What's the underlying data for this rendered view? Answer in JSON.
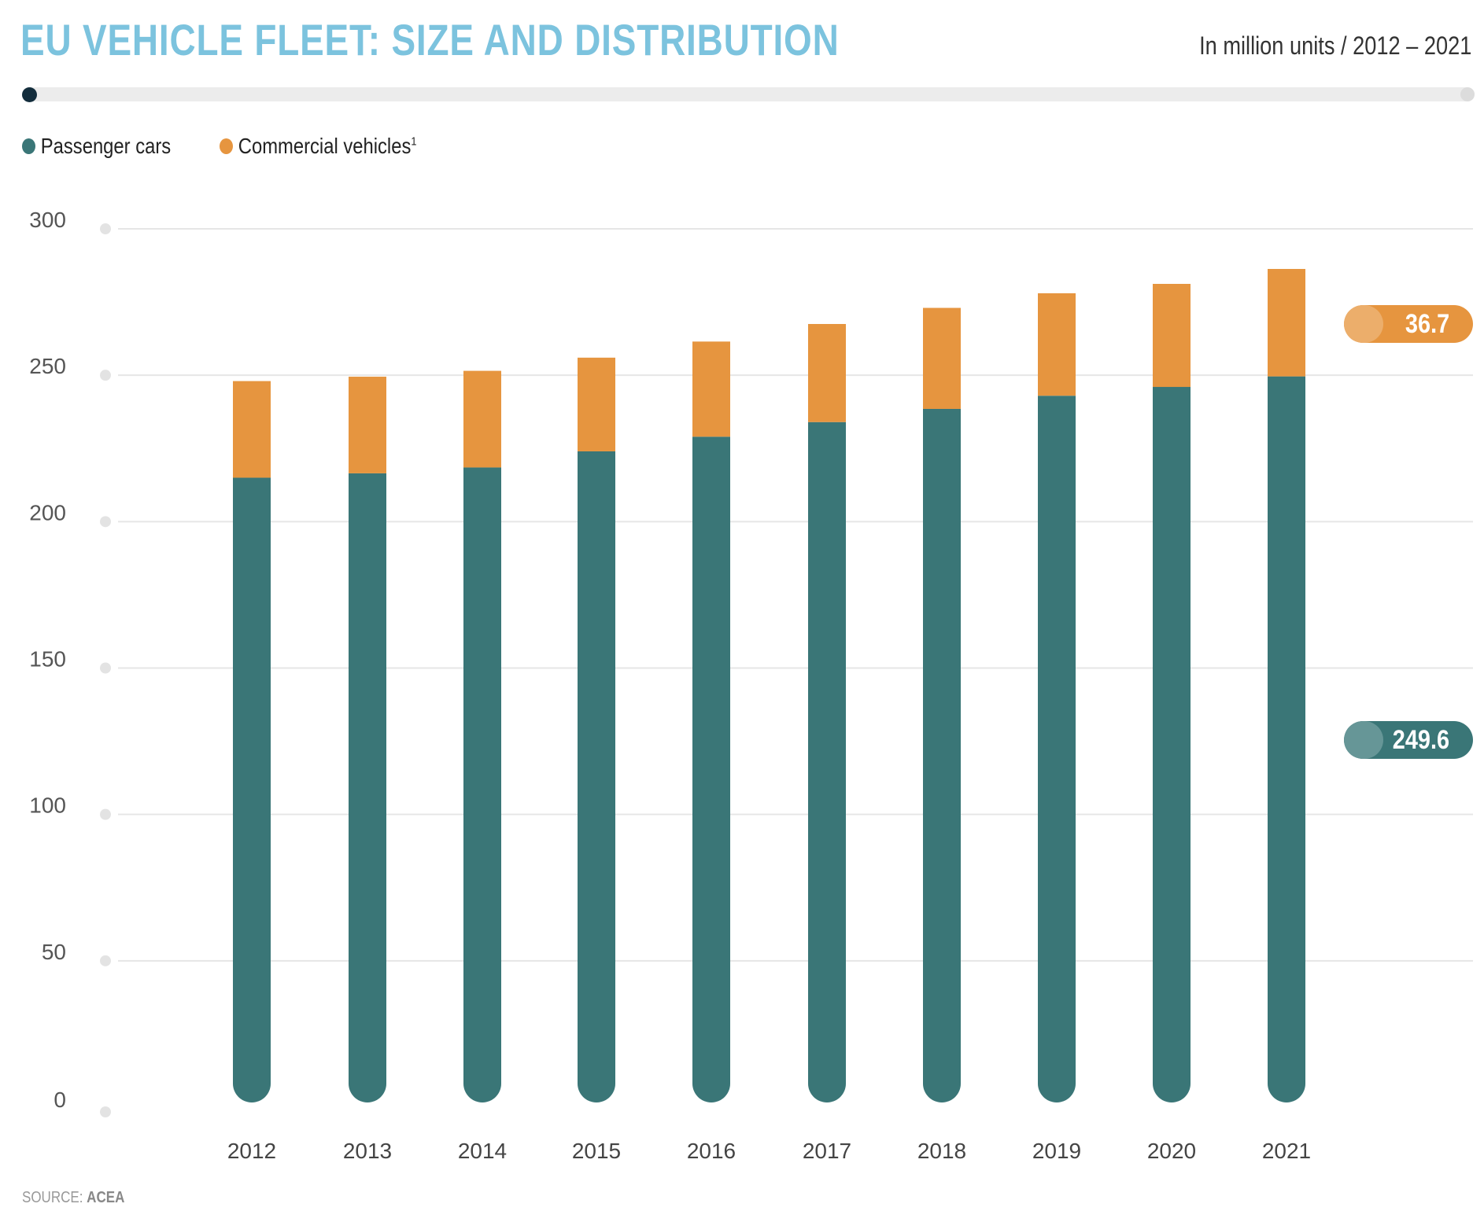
{
  "header": {
    "title": "EU VEHICLE FLEET: SIZE AND DISTRIBUTION",
    "subtitle": "In million units / 2012 – 2021"
  },
  "legend": {
    "items": [
      {
        "label": "Passenger cars",
        "color": "#3a7677"
      },
      {
        "label": "Commercial vehicles",
        "footnote": "1",
        "color": "#e6953f"
      }
    ]
  },
  "source": {
    "prefix": "SOURCE: ",
    "name": "ACEA"
  },
  "callouts": {
    "commercial_2021": "36.7",
    "passenger_2021": "249.6"
  },
  "chart_data": {
    "type": "bar",
    "stacked": true,
    "categories": [
      "2012",
      "2013",
      "2014",
      "2015",
      "2016",
      "2017",
      "2018",
      "2019",
      "2020",
      "2021"
    ],
    "series": [
      {
        "name": "Passenger cars",
        "color": "#3a7677",
        "values": [
          215,
          216.5,
          218.5,
          224,
          229,
          234,
          238.5,
          243,
          246,
          249.6
        ]
      },
      {
        "name": "Commercial vehicles",
        "color": "#e6953f",
        "values": [
          33,
          33,
          33,
          32,
          32.5,
          33.5,
          34.5,
          35,
          35.2,
          36.7
        ]
      }
    ],
    "yticks": [
      "0",
      "50",
      "100",
      "150",
      "200",
      "250",
      "300"
    ],
    "ylim": [
      0,
      300
    ],
    "grid": true,
    "legend_position": "top-left",
    "unit": "million units"
  }
}
